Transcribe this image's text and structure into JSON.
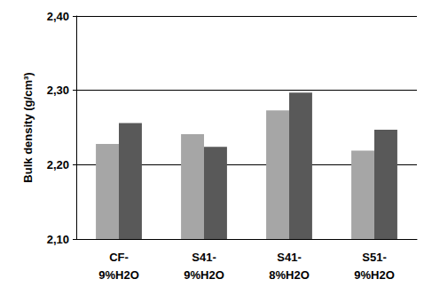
{
  "chart_data": {
    "type": "bar",
    "y_label": "Bulk density (g/cm³)",
    "categories": [
      "CF-\n9%H2O",
      "S41-\n9%H2O",
      "S41-\n8%H2O",
      "S51-\n9%H2O"
    ],
    "series": [
      {
        "color": "#a6a6a6",
        "values": [
          2.228,
          2.241,
          2.273,
          2.219
        ]
      },
      {
        "color": "#595959",
        "values": [
          2.256,
          2.224,
          2.297,
          2.247
        ]
      }
    ],
    "ylim": [
      2.1,
      2.4
    ],
    "yticks": [
      {
        "value": 2.1,
        "label": "2,10"
      },
      {
        "value": 2.2,
        "label": "2,20"
      },
      {
        "value": 2.3,
        "label": "2,30"
      },
      {
        "value": 2.4,
        "label": "2,40"
      }
    ],
    "grid": true
  }
}
